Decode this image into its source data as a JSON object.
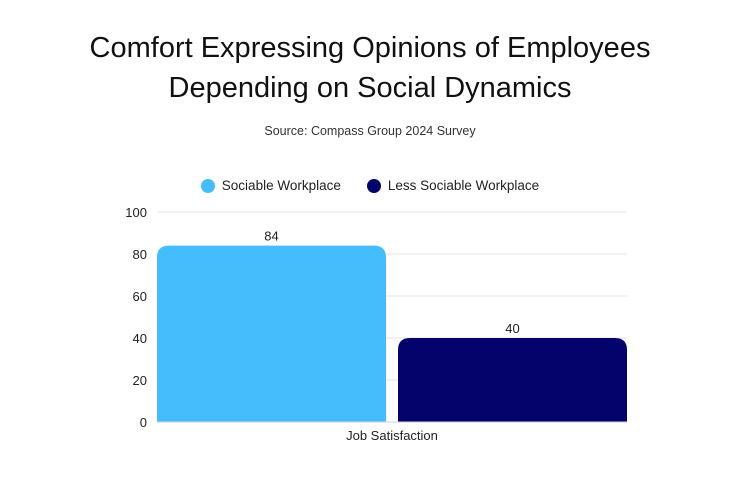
{
  "chart_data": {
    "type": "bar",
    "title": "Comfort Expressing Opinions of Employees Depending on Social Dynamics",
    "title_lines": [
      "Comfort Expressing Opinions of Employees",
      "Depending on Social Dynamics"
    ],
    "subtitle": "Source: Compass Group 2024 Survey",
    "categories": [
      "Job Satisfaction"
    ],
    "series": [
      {
        "name": "Sociable Workplace",
        "values": [
          84
        ],
        "color": "#45bdfc"
      },
      {
        "name": "Less Sociable Workplace",
        "values": [
          40
        ],
        "color": "#04036b"
      }
    ],
    "ylim": [
      0,
      100
    ],
    "yticks": [
      "0",
      "20",
      "40",
      "60",
      "80",
      "100"
    ],
    "grid": true,
    "legend_position": "top-center",
    "data_labels": [
      "84",
      "40"
    ]
  }
}
